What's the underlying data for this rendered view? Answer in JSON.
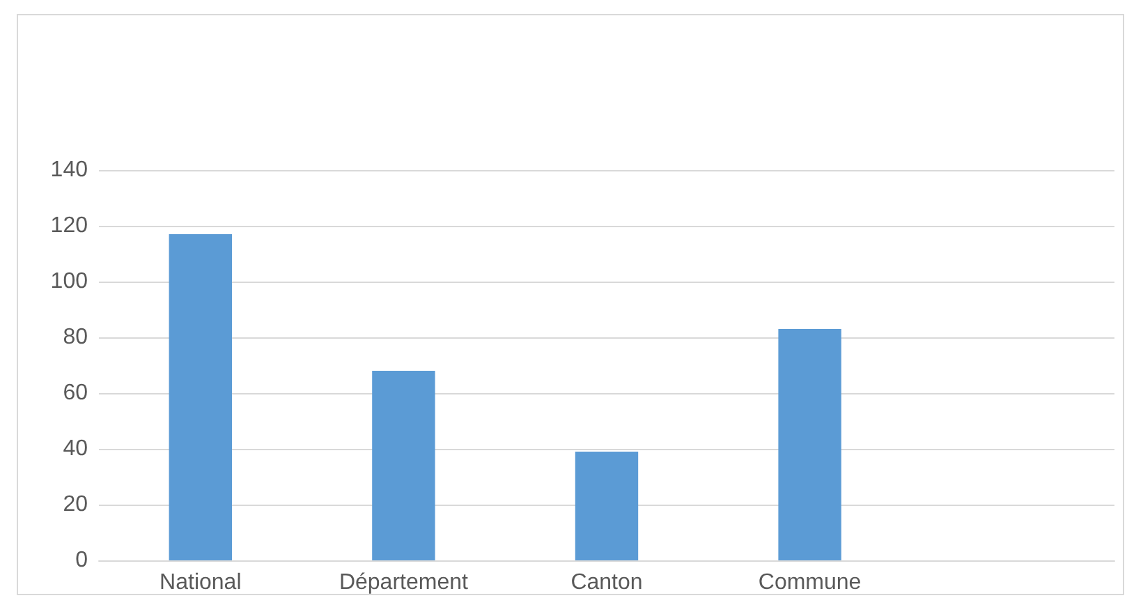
{
  "chart_data": {
    "type": "bar",
    "categories": [
      "National",
      "Département",
      "Canton",
      "Commune",
      null
    ],
    "values": [
      117,
      68,
      39,
      83,
      null
    ],
    "color": "#5b9bd5",
    "ylim": [
      0,
      140
    ],
    "yticks": [
      0,
      20,
      40,
      60,
      80,
      100,
      120,
      140
    ],
    "grid": "y"
  }
}
